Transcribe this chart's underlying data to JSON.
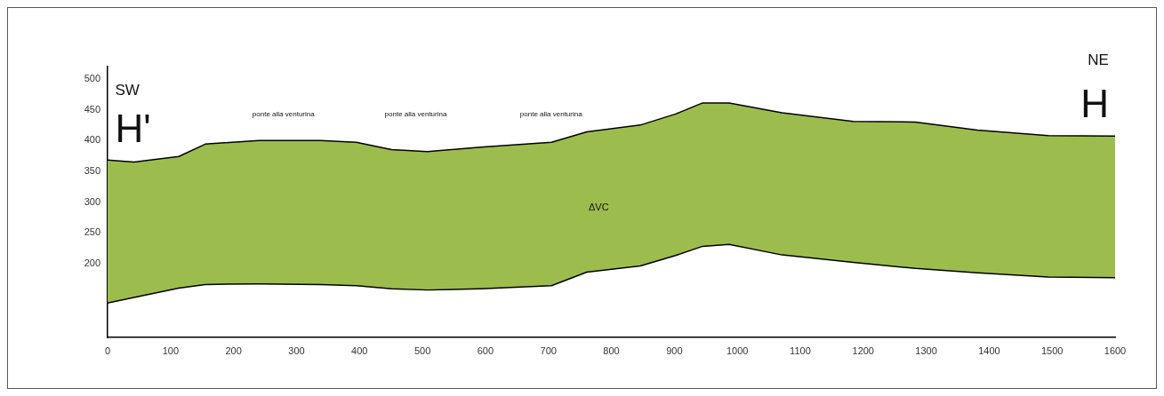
{
  "chart_data": {
    "type": "area",
    "xlim": [
      0,
      1600
    ],
    "xticks": [
      0,
      100,
      200,
      300,
      400,
      500,
      600,
      700,
      800,
      900,
      1000,
      1100,
      1200,
      1300,
      1400,
      1500,
      1600
    ],
    "ylim": [
      80,
      520
    ],
    "yticks": [
      200,
      250,
      300,
      350,
      400,
      450,
      500
    ],
    "grid": false,
    "legend": false,
    "series": [
      {
        "type": "line",
        "color": "#000000",
        "x": [
          0,
          42,
          113,
          155,
          240,
          338,
          395,
          451,
          508,
          592,
          705,
          761,
          846,
          902,
          945,
          987,
          1071,
          1184,
          1283,
          1381,
          1494,
          1600
        ],
        "values": [
          136,
          145,
          160,
          166,
          167,
          166,
          164,
          159,
          157,
          159,
          164,
          186,
          196,
          213,
          228,
          231,
          214,
          202,
          192,
          185,
          178,
          177
        ]
      },
      {
        "color": "#9cbd4e",
        "x": [
          0,
          42,
          113,
          155,
          240,
          338,
          395,
          451,
          508,
          592,
          705,
          761,
          846,
          902,
          945,
          987,
          1071,
          1184,
          1283,
          1381,
          1494,
          1600
        ],
        "values": [
          368,
          365,
          374,
          394,
          400,
          400,
          397,
          385,
          382,
          389,
          397,
          414,
          425,
          443,
          461,
          461,
          445,
          431,
          430,
          417,
          408,
          407
        ]
      }
    ],
    "annotations": [
      "SW",
      "H'",
      "ponte alla venturina",
      "ponte alla venturina",
      "ponte alla venturina",
      "ΔVC",
      "NE",
      "H"
    ]
  }
}
